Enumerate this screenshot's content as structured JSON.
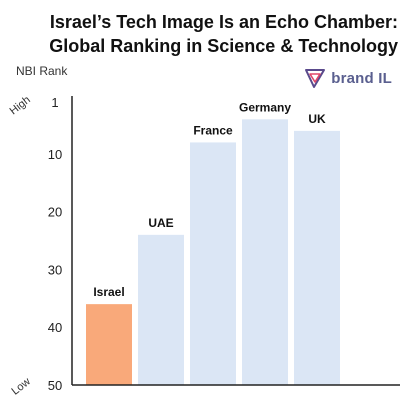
{
  "title": {
    "line1": "Israel’s Tech Image Is an Echo Chamber:",
    "line2": "Global Ranking in Science & Technology"
  },
  "logo": {
    "text": "brand IL"
  },
  "colors": {
    "highlight": "#f9a97a",
    "bar": "#dbe6f5",
    "axis": "#222222",
    "text": "#111111",
    "logo_accent": "#e0466a",
    "logo_purple": "#5a4a8c"
  },
  "chart_data": {
    "type": "bar",
    "orientation": "vertical",
    "inverted_y": true,
    "ylabel": "NBI Rank",
    "ylim": [
      1,
      50
    ],
    "yticks": [
      "1",
      "10",
      "20",
      "30",
      "40",
      "50"
    ],
    "ytick_values": [
      1,
      10,
      20,
      30,
      40,
      50
    ],
    "scale_labels": {
      "top": "High",
      "bottom": "Low"
    },
    "categories": [
      "Israel",
      "UAE",
      "France",
      "Germany",
      "UK"
    ],
    "values": [
      36,
      24,
      8,
      4,
      6
    ],
    "highlight_category": "Israel",
    "grid": false,
    "legend": "none"
  }
}
